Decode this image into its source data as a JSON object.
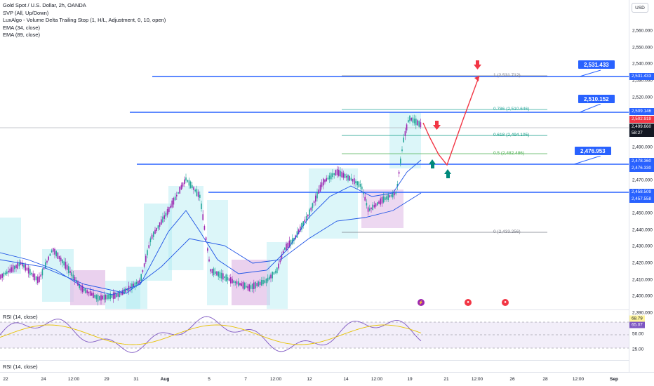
{
  "legend": {
    "symbol": "Gold Spot / U.S. Dollar, 2h, OANDA",
    "ind1": "SVP (All, Up/Down)",
    "ind2": "LuxAlgo - Volume Delta Trailing Stop (1, H/L, Adjustment, 0, 10, open)",
    "ind3": "EMA (34, close)",
    "ind4": "EMA (89, close)"
  },
  "currency_button": "USD",
  "price_ticks": [
    "2,560.000",
    "2,550.000",
    "2,540.000",
    "2,530.000",
    "2,520.000",
    "2,510.000",
    "2,500.000",
    "2,490.000",
    "2,480.000",
    "2,470.000",
    "2,460.000",
    "2,450.000",
    "2,440.000",
    "2,430.000",
    "2,420.000",
    "2,410.000",
    "2,400.000",
    "2,390.000"
  ],
  "price_badges": {
    "b1": "2,531.433",
    "b2": "2,509.146",
    "b3": "2,502.919",
    "b4": "2,499.660",
    "b4_timer": "58:27",
    "b5": "2,478.360",
    "b6": "2,476.330",
    "b7": "2,458.509",
    "b8": "2,457.558"
  },
  "callouts": {
    "c1": "2,531.433",
    "c2": "2,510.152",
    "c3": "2,476.953"
  },
  "fib_levels": {
    "l1": "1 (2,531.712)",
    "l2": "0.786 (2,510.646)",
    "l3": "0.618 (2,494.105)",
    "l4": "0.5 (2,482.486)",
    "l5": "0 (2,433.256)"
  },
  "rsi_pane": {
    "title": "RSI (14, close)",
    "val1": "68.79",
    "val2": "65.07",
    "tick_50": "50.00",
    "tick_25": "25.00"
  },
  "rsi_pane2": {
    "title": "RSI (14, close)"
  },
  "time_ticks": [
    "22",
    "24",
    "12:00",
    "29",
    "31",
    "Aug",
    "5",
    "7",
    "12:00",
    "12",
    "14",
    "12:00",
    "19",
    "21",
    "12:00",
    "26",
    "28",
    "12:00",
    "Sep"
  ],
  "colors": {
    "up": "#26a69a",
    "down": "#9c27b0",
    "level": "#2962ff",
    "arrow_red": "#f23645",
    "arrow_teal": "#00897b",
    "rsi": "#7e57c2"
  }
}
